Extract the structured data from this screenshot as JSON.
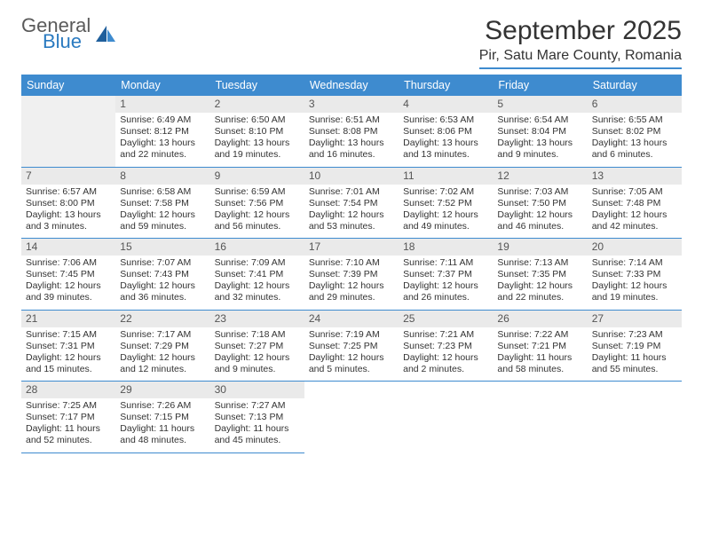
{
  "brand": {
    "general": "General",
    "blue": "Blue"
  },
  "header": {
    "title": "September 2025",
    "location": "Pir, Satu Mare County, Romania"
  },
  "style": {
    "accent": "#3e8bcf",
    "header_bg": "#3e8bcf",
    "daynum_bg": "#eaeaea",
    "empty_bg": "#f0f0f0",
    "text_color": "#333333",
    "title_fontsize": 30,
    "body_fontsize": 10.5,
    "dow_fontsize": 12.5
  },
  "dow": [
    "Sunday",
    "Monday",
    "Tuesday",
    "Wednesday",
    "Thursday",
    "Friday",
    "Saturday"
  ],
  "weeks": [
    [
      {
        "n": "",
        "sr": "",
        "ss": "",
        "dl1": "",
        "dl2": "",
        "empty": true
      },
      {
        "n": "1",
        "sr": "Sunrise: 6:49 AM",
        "ss": "Sunset: 8:12 PM",
        "dl1": "Daylight: 13 hours",
        "dl2": "and 22 minutes."
      },
      {
        "n": "2",
        "sr": "Sunrise: 6:50 AM",
        "ss": "Sunset: 8:10 PM",
        "dl1": "Daylight: 13 hours",
        "dl2": "and 19 minutes."
      },
      {
        "n": "3",
        "sr": "Sunrise: 6:51 AM",
        "ss": "Sunset: 8:08 PM",
        "dl1": "Daylight: 13 hours",
        "dl2": "and 16 minutes."
      },
      {
        "n": "4",
        "sr": "Sunrise: 6:53 AM",
        "ss": "Sunset: 8:06 PM",
        "dl1": "Daylight: 13 hours",
        "dl2": "and 13 minutes."
      },
      {
        "n": "5",
        "sr": "Sunrise: 6:54 AM",
        "ss": "Sunset: 8:04 PM",
        "dl1": "Daylight: 13 hours",
        "dl2": "and 9 minutes."
      },
      {
        "n": "6",
        "sr": "Sunrise: 6:55 AM",
        "ss": "Sunset: 8:02 PM",
        "dl1": "Daylight: 13 hours",
        "dl2": "and 6 minutes."
      }
    ],
    [
      {
        "n": "7",
        "sr": "Sunrise: 6:57 AM",
        "ss": "Sunset: 8:00 PM",
        "dl1": "Daylight: 13 hours",
        "dl2": "and 3 minutes."
      },
      {
        "n": "8",
        "sr": "Sunrise: 6:58 AM",
        "ss": "Sunset: 7:58 PM",
        "dl1": "Daylight: 12 hours",
        "dl2": "and 59 minutes."
      },
      {
        "n": "9",
        "sr": "Sunrise: 6:59 AM",
        "ss": "Sunset: 7:56 PM",
        "dl1": "Daylight: 12 hours",
        "dl2": "and 56 minutes."
      },
      {
        "n": "10",
        "sr": "Sunrise: 7:01 AM",
        "ss": "Sunset: 7:54 PM",
        "dl1": "Daylight: 12 hours",
        "dl2": "and 53 minutes."
      },
      {
        "n": "11",
        "sr": "Sunrise: 7:02 AM",
        "ss": "Sunset: 7:52 PM",
        "dl1": "Daylight: 12 hours",
        "dl2": "and 49 minutes."
      },
      {
        "n": "12",
        "sr": "Sunrise: 7:03 AM",
        "ss": "Sunset: 7:50 PM",
        "dl1": "Daylight: 12 hours",
        "dl2": "and 46 minutes."
      },
      {
        "n": "13",
        "sr": "Sunrise: 7:05 AM",
        "ss": "Sunset: 7:48 PM",
        "dl1": "Daylight: 12 hours",
        "dl2": "and 42 minutes."
      }
    ],
    [
      {
        "n": "14",
        "sr": "Sunrise: 7:06 AM",
        "ss": "Sunset: 7:45 PM",
        "dl1": "Daylight: 12 hours",
        "dl2": "and 39 minutes."
      },
      {
        "n": "15",
        "sr": "Sunrise: 7:07 AM",
        "ss": "Sunset: 7:43 PM",
        "dl1": "Daylight: 12 hours",
        "dl2": "and 36 minutes."
      },
      {
        "n": "16",
        "sr": "Sunrise: 7:09 AM",
        "ss": "Sunset: 7:41 PM",
        "dl1": "Daylight: 12 hours",
        "dl2": "and 32 minutes."
      },
      {
        "n": "17",
        "sr": "Sunrise: 7:10 AM",
        "ss": "Sunset: 7:39 PM",
        "dl1": "Daylight: 12 hours",
        "dl2": "and 29 minutes."
      },
      {
        "n": "18",
        "sr": "Sunrise: 7:11 AM",
        "ss": "Sunset: 7:37 PM",
        "dl1": "Daylight: 12 hours",
        "dl2": "and 26 minutes."
      },
      {
        "n": "19",
        "sr": "Sunrise: 7:13 AM",
        "ss": "Sunset: 7:35 PM",
        "dl1": "Daylight: 12 hours",
        "dl2": "and 22 minutes."
      },
      {
        "n": "20",
        "sr": "Sunrise: 7:14 AM",
        "ss": "Sunset: 7:33 PM",
        "dl1": "Daylight: 12 hours",
        "dl2": "and 19 minutes."
      }
    ],
    [
      {
        "n": "21",
        "sr": "Sunrise: 7:15 AM",
        "ss": "Sunset: 7:31 PM",
        "dl1": "Daylight: 12 hours",
        "dl2": "and 15 minutes."
      },
      {
        "n": "22",
        "sr": "Sunrise: 7:17 AM",
        "ss": "Sunset: 7:29 PM",
        "dl1": "Daylight: 12 hours",
        "dl2": "and 12 minutes."
      },
      {
        "n": "23",
        "sr": "Sunrise: 7:18 AM",
        "ss": "Sunset: 7:27 PM",
        "dl1": "Daylight: 12 hours",
        "dl2": "and 9 minutes."
      },
      {
        "n": "24",
        "sr": "Sunrise: 7:19 AM",
        "ss": "Sunset: 7:25 PM",
        "dl1": "Daylight: 12 hours",
        "dl2": "and 5 minutes."
      },
      {
        "n": "25",
        "sr": "Sunrise: 7:21 AM",
        "ss": "Sunset: 7:23 PM",
        "dl1": "Daylight: 12 hours",
        "dl2": "and 2 minutes."
      },
      {
        "n": "26",
        "sr": "Sunrise: 7:22 AM",
        "ss": "Sunset: 7:21 PM",
        "dl1": "Daylight: 11 hours",
        "dl2": "and 58 minutes."
      },
      {
        "n": "27",
        "sr": "Sunrise: 7:23 AM",
        "ss": "Sunset: 7:19 PM",
        "dl1": "Daylight: 11 hours",
        "dl2": "and 55 minutes."
      }
    ],
    [
      {
        "n": "28",
        "sr": "Sunrise: 7:25 AM",
        "ss": "Sunset: 7:17 PM",
        "dl1": "Daylight: 11 hours",
        "dl2": "and 52 minutes."
      },
      {
        "n": "29",
        "sr": "Sunrise: 7:26 AM",
        "ss": "Sunset: 7:15 PM",
        "dl1": "Daylight: 11 hours",
        "dl2": "and 48 minutes."
      },
      {
        "n": "30",
        "sr": "Sunrise: 7:27 AM",
        "ss": "Sunset: 7:13 PM",
        "dl1": "Daylight: 11 hours",
        "dl2": "and 45 minutes."
      },
      {
        "n": "",
        "sr": "",
        "ss": "",
        "dl1": "",
        "dl2": "",
        "empty": true,
        "blank": true
      },
      {
        "n": "",
        "sr": "",
        "ss": "",
        "dl1": "",
        "dl2": "",
        "empty": true,
        "blank": true
      },
      {
        "n": "",
        "sr": "",
        "ss": "",
        "dl1": "",
        "dl2": "",
        "empty": true,
        "blank": true
      },
      {
        "n": "",
        "sr": "",
        "ss": "",
        "dl1": "",
        "dl2": "",
        "empty": true,
        "blank": true
      }
    ]
  ]
}
